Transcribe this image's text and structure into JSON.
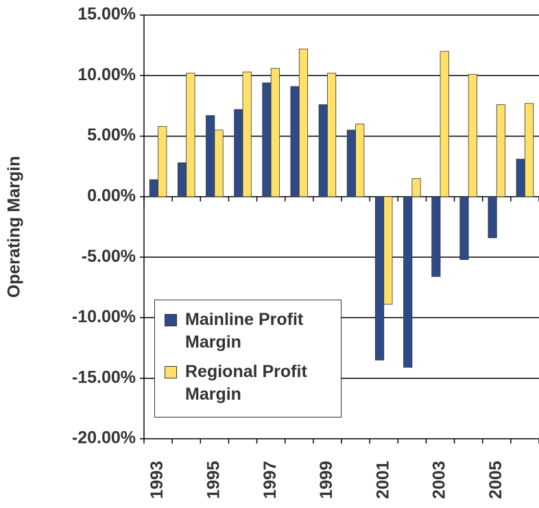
{
  "chart_data": {
    "type": "bar",
    "y_axis_label": "Operating Margin",
    "categories": [
      "1993",
      null,
      "1995",
      null,
      "1997",
      null,
      "1999",
      null,
      "2001",
      null,
      "2003",
      null,
      "2005",
      null
    ],
    "series": [
      {
        "name": "Mainline Profit Margin",
        "color": "#2e4a87",
        "values": [
          1.4,
          2.8,
          6.7,
          7.2,
          9.4,
          9.1,
          7.6,
          5.5,
          -13.5,
          -14.1,
          -6.6,
          -5.2,
          -3.4,
          3.1
        ]
      },
      {
        "name": "Regional Profit Margin",
        "color": "#ffe169",
        "values": [
          5.8,
          10.2,
          5.5,
          10.3,
          10.6,
          12.2,
          10.2,
          6.0,
          -8.9,
          1.5,
          12.0,
          10.1,
          7.6,
          7.7
        ]
      }
    ],
    "ylim": [
      -20,
      15
    ],
    "yticks": [
      {
        "value": -20,
        "label": "-20.00%"
      },
      {
        "value": -15,
        "label": "-15.00%"
      },
      {
        "value": -10,
        "label": "-10.00%"
      },
      {
        "value": -5,
        "label": "-5.00%"
      },
      {
        "value": 0,
        "label": "0.00%"
      },
      {
        "value": 5,
        "label": "5.00%"
      },
      {
        "value": 10,
        "label": "10.00%"
      },
      {
        "value": 15,
        "label": "15.00%"
      }
    ],
    "grid": true,
    "legend": "lower left"
  }
}
